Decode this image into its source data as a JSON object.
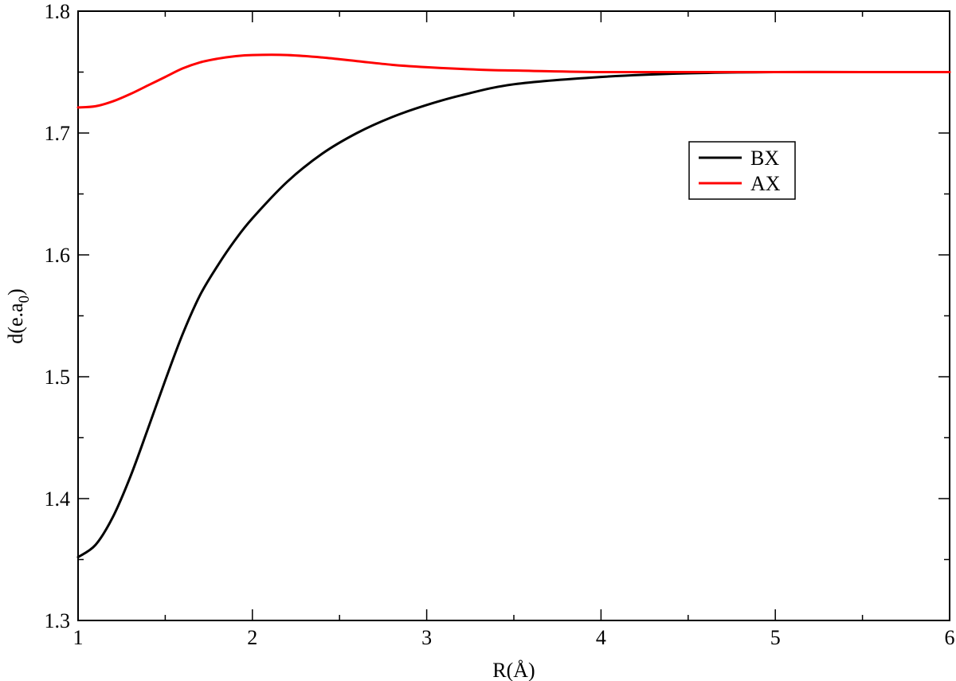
{
  "chart_data": {
    "type": "line",
    "xlabel": "R(Å)",
    "ylabel_main": "d(e.a",
    "ylabel_sub": "0",
    "ylabel_close": ")",
    "xlim": [
      1,
      6
    ],
    "ylim": [
      1.3,
      1.8
    ],
    "x_ticks": [
      "1",
      "2",
      "3",
      "4",
      "5",
      "6"
    ],
    "y_ticks": [
      "1.3",
      "1.4",
      "1.5",
      "1.6",
      "1.7",
      "1.8"
    ],
    "grid": false,
    "legend_position": "upper-right-inside",
    "series": [
      {
        "name": "BX",
        "color": "#000000",
        "x": [
          1.0,
          1.1,
          1.2,
          1.3,
          1.4,
          1.5,
          1.6,
          1.7,
          1.8,
          1.9,
          2.0,
          2.2,
          2.4,
          2.6,
          2.8,
          3.0,
          3.2,
          3.5,
          4.0,
          4.5,
          5.0,
          5.5,
          6.0
        ],
        "y": [
          1.352,
          1.362,
          1.385,
          1.418,
          1.457,
          1.497,
          1.535,
          1.567,
          1.591,
          1.612,
          1.63,
          1.66,
          1.683,
          1.7,
          1.713,
          1.723,
          1.731,
          1.74,
          1.746,
          1.749,
          1.75,
          1.75,
          1.75
        ]
      },
      {
        "name": "AX",
        "color": "#ff0000",
        "x": [
          1.0,
          1.1,
          1.2,
          1.3,
          1.4,
          1.5,
          1.6,
          1.7,
          1.8,
          1.9,
          2.0,
          2.2,
          2.4,
          2.6,
          2.8,
          3.0,
          3.3,
          3.6,
          4.0,
          4.5,
          5.0,
          5.5,
          6.0
        ],
        "y": [
          1.721,
          1.722,
          1.726,
          1.732,
          1.739,
          1.746,
          1.753,
          1.758,
          1.761,
          1.763,
          1.764,
          1.764,
          1.762,
          1.759,
          1.756,
          1.754,
          1.752,
          1.751,
          1.75,
          1.75,
          1.75,
          1.75,
          1.75
        ]
      }
    ]
  }
}
